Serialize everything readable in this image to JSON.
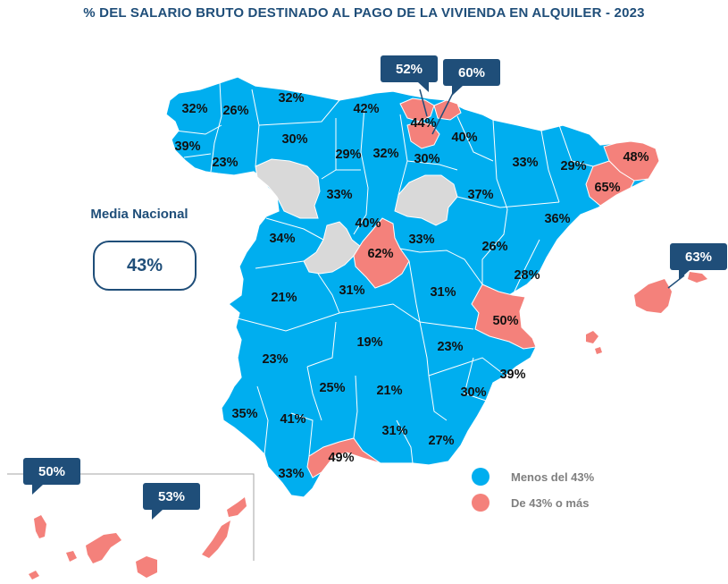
{
  "title": "% DEL SALARIO BRUTO DESTINADO AL PAGO DE LA VIVIENDA EN ALQUILER - 2023",
  "national_average": {
    "label": "Media Nacional",
    "value": "43%"
  },
  "legend": [
    {
      "label": "Menos del 43%",
      "color": "#00aeef"
    },
    {
      "label": "De 43% o más",
      "color": "#f4817b"
    }
  ],
  "colors": {
    "blue": "#00aeef",
    "red": "#f4817b",
    "gray": "#d9d9d9",
    "navy": "#1f4e79"
  },
  "labels": [
    {
      "id": "a-coruna",
      "value": "32%"
    },
    {
      "id": "lugo",
      "value": "26%"
    },
    {
      "id": "asturias",
      "value": "32%"
    },
    {
      "id": "cantabria",
      "value": "42%"
    },
    {
      "id": "bizkaia",
      "value": "44%"
    },
    {
      "id": "navarra",
      "value": "40%"
    },
    {
      "id": "pontevedra",
      "value": "39%"
    },
    {
      "id": "ourense",
      "value": "23%"
    },
    {
      "id": "leon",
      "value": "30%"
    },
    {
      "id": "palencia",
      "value": "29%"
    },
    {
      "id": "burgos",
      "value": "32%"
    },
    {
      "id": "la-rioja",
      "value": "30%"
    },
    {
      "id": "huesca",
      "value": "33%"
    },
    {
      "id": "lleida",
      "value": "29%"
    },
    {
      "id": "girona",
      "value": "48%"
    },
    {
      "id": "barcelona",
      "value": "65%"
    },
    {
      "id": "valladolid",
      "value": "33%"
    },
    {
      "id": "zaragoza",
      "value": "37%"
    },
    {
      "id": "tarragona",
      "value": "36%"
    },
    {
      "id": "segovia",
      "value": "40%"
    },
    {
      "id": "madrid",
      "value": "62%"
    },
    {
      "id": "guadalajara",
      "value": "33%"
    },
    {
      "id": "teruel",
      "value": "26%"
    },
    {
      "id": "castellon",
      "value": "28%"
    },
    {
      "id": "salamanca",
      "value": "34%"
    },
    {
      "id": "caceres",
      "value": "21%"
    },
    {
      "id": "toledo",
      "value": "31%"
    },
    {
      "id": "cuenca",
      "value": "31%"
    },
    {
      "id": "valencia",
      "value": "50%"
    },
    {
      "id": "ciudad-real",
      "value": "19%"
    },
    {
      "id": "albacete",
      "value": "23%"
    },
    {
      "id": "badajoz",
      "value": "23%"
    },
    {
      "id": "alicante",
      "value": "39%"
    },
    {
      "id": "cordoba",
      "value": "25%"
    },
    {
      "id": "jaen",
      "value": "21%"
    },
    {
      "id": "murcia",
      "value": "30%"
    },
    {
      "id": "huelva",
      "value": "35%"
    },
    {
      "id": "sevilla",
      "value": "41%"
    },
    {
      "id": "granada",
      "value": "31%"
    },
    {
      "id": "almeria",
      "value": "27%"
    },
    {
      "id": "malaga",
      "value": "49%"
    },
    {
      "id": "cadiz",
      "value": "33%"
    }
  ],
  "callouts": [
    {
      "id": "gipuzkoa",
      "value": "52%"
    },
    {
      "id": "alava",
      "value": "60%"
    },
    {
      "id": "baleares",
      "value": "63%"
    },
    {
      "id": "santa-cruz-tenerife",
      "value": "50%"
    },
    {
      "id": "las-palmas",
      "value": "53%"
    }
  ]
}
